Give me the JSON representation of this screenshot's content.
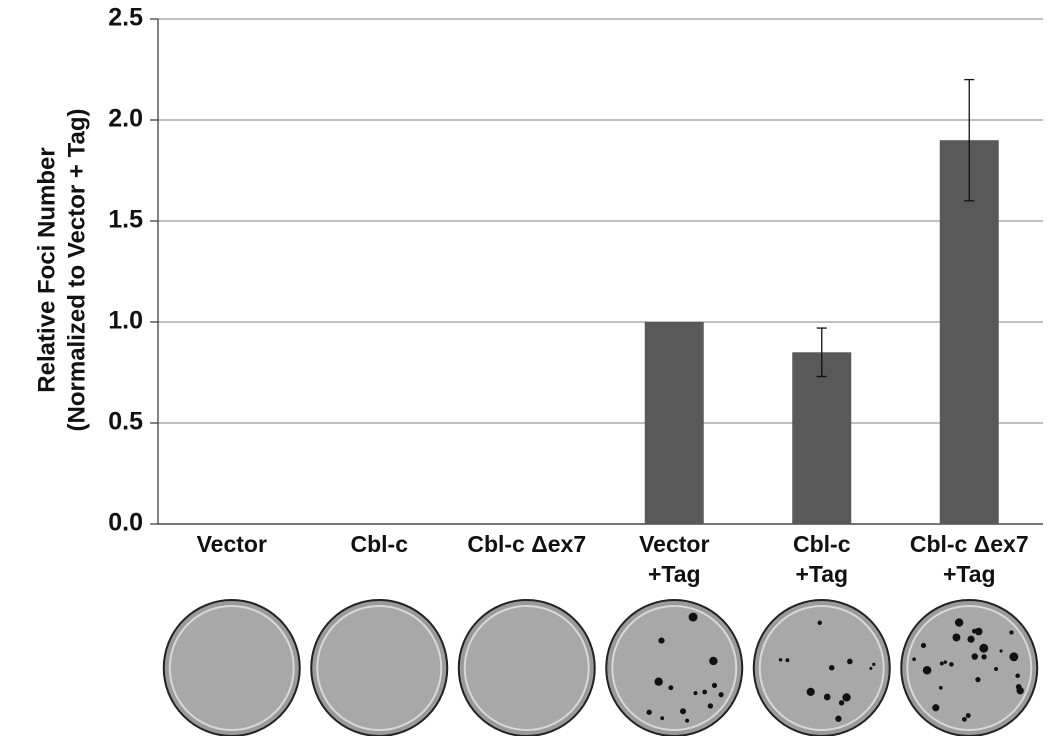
{
  "chart_data": {
    "type": "bar",
    "ylabel": [
      "Relative Foci Number",
      "(Normalized to Vector + Tag)"
    ],
    "categories": [
      "Vector",
      "Cbl-c",
      "Cbl-c Δex7",
      "Vector\n+Tag",
      "Cbl-c\n+Tag",
      "Cbl-c Δex7\n+Tag"
    ],
    "values": [
      0,
      0,
      0,
      1.0,
      0.85,
      1.9
    ],
    "errors": [
      0,
      0,
      0,
      0,
      0.12,
      0.3
    ],
    "color": "#595959",
    "ylim": [
      0,
      2.5
    ],
    "yticks": [
      {
        "value": 0,
        "label": "0.0"
      },
      {
        "value": 0.5,
        "label": "0.5"
      },
      {
        "value": 1,
        "label": "1.0"
      },
      {
        "value": 1.5,
        "label": "1.5"
      },
      {
        "value": 2,
        "label": "2.0"
      },
      {
        "value": 2.5,
        "label": "2.5"
      }
    ],
    "grid": true
  }
}
